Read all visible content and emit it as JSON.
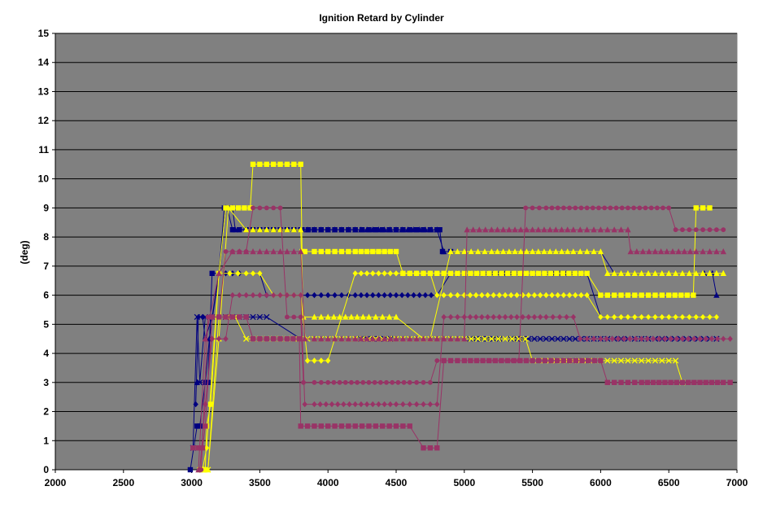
{
  "chart_data": {
    "type": "line",
    "title": "Ignition Retard by Cylinder",
    "xlabel": "",
    "ylabel": "(deg)",
    "xlim": [
      2000,
      7000
    ],
    "ylim": [
      0,
      15
    ],
    "x_ticks": [
      "2000",
      "2500",
      "3000",
      "3500",
      "4000",
      "4500",
      "5000",
      "5500",
      "6000",
      "6500",
      "7000"
    ],
    "y_ticks": [
      "0",
      "1",
      "2",
      "3",
      "4",
      "5",
      "6",
      "7",
      "8",
      "9",
      "10",
      "11",
      "12",
      "13",
      "14",
      "15"
    ],
    "grid": true,
    "legend": "none",
    "plot_background": "#808080",
    "series": [
      {
        "color": "#000080",
        "marker": "square",
        "x": [
          2990,
          3040,
          3060,
          3100,
          3120,
          3150,
          3200,
          3240,
          3260,
          3300,
          3500,
          3550,
          3600,
          3650,
          3700,
          3800,
          3810,
          3900,
          4000,
          4200,
          4400,
          4500,
          4600,
          4700,
          4800,
          4820,
          4840,
          4900
        ],
        "y": [
          0,
          1.5,
          1.5,
          3,
          3,
          6.75,
          6.75,
          9,
          9,
          8.25,
          8.25,
          8.25,
          8.25,
          8.25,
          8.25,
          8.25,
          8.25,
          8.25,
          8.25,
          8.25,
          8.25,
          8.25,
          8.25,
          8.25,
          8.25,
          8.25,
          7.5,
          7.5
        ]
      },
      {
        "color": "#000080",
        "marker": "triangle",
        "x": [
          3040,
          3100,
          3130,
          3200,
          3250,
          3300,
          3320,
          3400,
          3500,
          3700,
          3800,
          4000,
          4200,
          4500,
          4800,
          4850,
          5000,
          5200,
          5500,
          5800,
          6000,
          6100,
          6300,
          6500,
          6700,
          6820,
          6850
        ],
        "y": [
          3,
          3,
          4.5,
          6.75,
          9,
          9,
          8.25,
          8.25,
          8.25,
          8.25,
          8.25,
          8.25,
          8.25,
          8.25,
          8.25,
          7.5,
          7.5,
          7.5,
          7.5,
          7.5,
          7.5,
          6.75,
          6.75,
          6.75,
          6.75,
          6.75,
          6.0
        ]
      },
      {
        "color": "#000080",
        "marker": "diamond",
        "x": [
          3030,
          3050,
          3080,
          3100,
          3150,
          3200,
          3250,
          3300,
          3500,
          3550,
          3700,
          3800,
          3900,
          4000,
          4200,
          4500,
          4800,
          4900,
          5000,
          5300,
          5500,
          5700,
          5900,
          6000,
          6100,
          6300,
          6500,
          6700,
          6800,
          6850
        ],
        "y": [
          2.25,
          5.25,
          5.25,
          4.5,
          5.25,
          6.75,
          6.75,
          6.75,
          6.75,
          6.0,
          6.0,
          6.0,
          6.0,
          6.0,
          6.0,
          6.0,
          6.0,
          6.75,
          6.75,
          6.75,
          6.75,
          6.75,
          6.75,
          5.25,
          5.25,
          5.25,
          5.25,
          5.25,
          5.25,
          5.25
        ]
      },
      {
        "color": "#000080",
        "marker": "x",
        "x": [
          3010,
          3040,
          3060,
          3100,
          3150,
          3200,
          3300,
          3400,
          3500,
          3550,
          3800,
          4000,
          4200,
          4500,
          4700,
          4800,
          4850,
          5000,
          5300,
          5600,
          5900,
          6050,
          6300,
          6500,
          6800,
          6850
        ],
        "y": [
          0.75,
          5.25,
          3,
          5.25,
          5.25,
          5.25,
          5.25,
          5.25,
          5.25,
          5.25,
          4.5,
          4.5,
          4.5,
          4.5,
          4.5,
          4.5,
          4.5,
          4.5,
          4.5,
          4.5,
          4.5,
          4.5,
          4.5,
          4.5,
          4.5,
          4.5
        ]
      },
      {
        "color": "#FFFF00",
        "marker": "square",
        "x": [
          3060,
          3100,
          3110,
          3140,
          3200,
          3250,
          3300,
          3430,
          3450,
          3600,
          3800,
          3810,
          3830,
          3900,
          4000,
          4200,
          4500,
          4550,
          4700,
          4800,
          5000,
          5500,
          5900,
          6000,
          6100,
          6300,
          6500,
          6680,
          6700,
          6800
        ],
        "y": [
          0,
          0,
          1.5,
          2.25,
          6.75,
          9,
          9,
          9,
          10.5,
          10.5,
          10.5,
          7.5,
          7.5,
          7.5,
          7.5,
          7.5,
          7.5,
          6.75,
          6.75,
          6.75,
          6.75,
          6.75,
          6.75,
          6.0,
          6.0,
          6.0,
          6.0,
          6.0,
          9,
          9
        ]
      },
      {
        "color": "#FFFF00",
        "marker": "triangle",
        "x": [
          3090,
          3120,
          3200,
          3270,
          3400,
          3500,
          3700,
          3800,
          3820,
          3900,
          4000,
          4300,
          4500,
          4700,
          4750,
          4900,
          5000,
          5200,
          5500,
          5800,
          6000,
          6050,
          6200,
          6400,
          6600,
          6800,
          6900
        ],
        "y": [
          0,
          0,
          4.5,
          9,
          8.25,
          8.25,
          8.25,
          8.25,
          5.25,
          5.25,
          5.25,
          5.25,
          5.25,
          4.5,
          4.5,
          7.5,
          7.5,
          7.5,
          7.5,
          7.5,
          7.5,
          6.75,
          6.75,
          6.75,
          6.75,
          6.75,
          6.75
        ]
      },
      {
        "color": "#FFFF00",
        "marker": "diamond",
        "x": [
          3080,
          3110,
          3200,
          3280,
          3400,
          3500,
          3600,
          3800,
          3850,
          3900,
          4000,
          4200,
          4500,
          4750,
          4800,
          5000,
          5300,
          5600,
          5900,
          6000,
          6100,
          6300,
          6500,
          6700,
          6850
        ],
        "y": [
          0,
          0.75,
          6.75,
          6.75,
          6.75,
          6.75,
          6.0,
          6.0,
          3.75,
          3.75,
          3.75,
          6.75,
          6.75,
          6.75,
          6.0,
          6.0,
          6.0,
          6.0,
          6.0,
          5.25,
          5.25,
          5.25,
          5.25,
          5.25,
          5.25
        ]
      },
      {
        "color": "#FFFF00",
        "marker": "x",
        "x": [
          3080,
          3120,
          3200,
          3320,
          3400,
          3500,
          3700,
          3800,
          3900,
          4000,
          4200,
          4300,
          4500,
          4700,
          4900,
          5100,
          5300,
          5450,
          5500,
          5800,
          6000,
          6200,
          6400,
          6550,
          6600
        ],
        "y": [
          0,
          0,
          5.25,
          5.25,
          4.5,
          4.5,
          4.5,
          4.5,
          4.5,
          4.5,
          4.5,
          4.5,
          4.5,
          4.5,
          4.5,
          4.5,
          4.5,
          4.5,
          3.75,
          3.75,
          3.75,
          3.75,
          3.75,
          3.75,
          3.0
        ]
      },
      {
        "color": "#993366",
        "marker": "square",
        "x": [
          3010,
          3050,
          3080,
          3100,
          3150,
          3250,
          3300,
          3400,
          3450,
          3500,
          3700,
          3790,
          3800,
          3900,
          4000,
          4200,
          4400,
          4500,
          4600,
          4700,
          4750,
          4800,
          4850,
          5000,
          5500,
          6000,
          6050,
          6300,
          6600,
          6900,
          6950
        ],
        "y": [
          0.75,
          0.75,
          0.75,
          1.5,
          5.25,
          5.25,
          5.25,
          5.25,
          4.5,
          4.5,
          4.5,
          4.5,
          1.5,
          1.5,
          1.5,
          1.5,
          1.5,
          1.5,
          1.5,
          0.75,
          0.75,
          0.75,
          3.75,
          3.75,
          3.75,
          3.75,
          3.0,
          3.0,
          3.0,
          3.0,
          3.0
        ]
      },
      {
        "color": "#993366",
        "marker": "triangle",
        "x": [
          3050,
          3100,
          3200,
          3300,
          3500,
          3700,
          3750,
          3800,
          3830,
          3900,
          4000,
          4200,
          4500,
          4700,
          4800,
          5000,
          5020,
          5200,
          5500,
          5800,
          6000,
          6200,
          6220,
          6400,
          6700,
          6900
        ],
        "y": [
          0,
          4.5,
          6.75,
          7.5,
          7.5,
          7.5,
          7.5,
          7.5,
          4.5,
          4.5,
          4.5,
          4.5,
          4.5,
          4.5,
          4.5,
          4.5,
          8.25,
          8.25,
          8.25,
          8.25,
          8.25,
          8.25,
          7.5,
          7.5,
          7.5,
          7.5
        ]
      },
      {
        "color": "#993366",
        "marker": "diamond",
        "x": [
          3060,
          3100,
          3150,
          3200,
          3250,
          3300,
          3500,
          3650,
          3800,
          3830,
          3900,
          4200,
          4500,
          4700,
          4800,
          4850,
          5000,
          5300,
          5600,
          5800,
          5850,
          6000,
          6300,
          6600,
          6900,
          6950
        ],
        "y": [
          0,
          2.25,
          4.5,
          4.5,
          4.5,
          6.0,
          6.0,
          6.0,
          6.0,
          2.25,
          2.25,
          2.25,
          2.25,
          2.25,
          2.25,
          5.25,
          5.25,
          5.25,
          5.25,
          5.25,
          4.5,
          4.5,
          4.5,
          4.5,
          4.5,
          4.5
        ]
      },
      {
        "color": "#993366",
        "marker": "circle",
        "x": [
          3070,
          3120,
          3200,
          3250,
          3400,
          3450,
          3500,
          3650,
          3700,
          3800,
          3820,
          3900,
          4000,
          4300,
          4600,
          4750,
          4800,
          4900,
          5000,
          5400,
          5450,
          5600,
          5900,
          6200,
          6500,
          6550,
          6700,
          6900
        ],
        "y": [
          0,
          5.25,
          5.25,
          7.5,
          7.5,
          9,
          9,
          9,
          5.25,
          5.25,
          3.0,
          3.0,
          3.0,
          3.0,
          3.0,
          3.0,
          3.75,
          3.75,
          3.75,
          3.75,
          9,
          9,
          9,
          9,
          9,
          8.25,
          8.25,
          8.25
        ]
      }
    ]
  }
}
